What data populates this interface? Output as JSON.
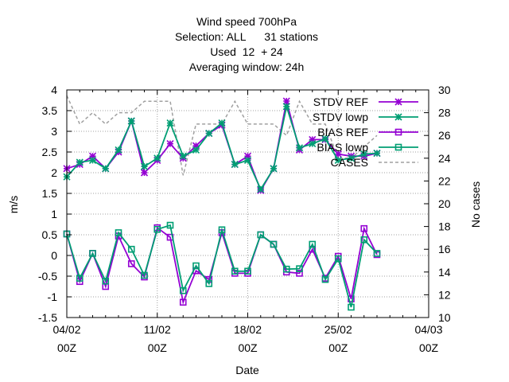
{
  "chart_data": {
    "type": "line",
    "title": [
      "Wind speed 700hPa",
      "Selection: ALL      31 stations",
      "Used  12  + 24",
      "Averaging window: 24h"
    ],
    "xlabel": "Date",
    "ylabel": "m/s",
    "y2label": "No cases",
    "x_ticks": [
      {
        "x": 0,
        "line1": "04/02",
        "line2": "00Z"
      },
      {
        "x": 7,
        "line1": "11/02",
        "line2": "00Z"
      },
      {
        "x": 14,
        "line1": "18/02",
        "line2": "00Z"
      },
      {
        "x": 21,
        "line1": "25/02",
        "line2": "00Z"
      },
      {
        "x": 28,
        "line1": "04/03",
        "line2": "00Z"
      }
    ],
    "xlim": [
      0,
      28
    ],
    "ylim": [
      -1.5,
      4
    ],
    "y_ticks": [
      "-1.5",
      "-1",
      "-0.5",
      "0",
      "0.5",
      "1",
      "1.5",
      "2",
      "2.5",
      "3",
      "3.5",
      "4"
    ],
    "y2lim": [
      10,
      30
    ],
    "y2_ticks": [
      "10",
      "12",
      "14",
      "16",
      "18",
      "20",
      "22",
      "24",
      "26",
      "28",
      "30"
    ],
    "grid": true,
    "legend_placement": "top-right",
    "x": [
      0,
      1,
      2,
      3,
      4,
      5,
      6,
      7,
      8,
      9,
      10,
      11,
      12,
      13,
      14,
      15,
      16,
      17,
      18,
      19,
      20,
      21,
      22,
      23,
      24
    ],
    "series": [
      {
        "name": "STDV REF",
        "axis": "y",
        "color": "#9400d3",
        "marker": "star",
        "values": [
          2.1,
          2.2,
          2.4,
          2.1,
          2.5,
          3.25,
          2.0,
          2.3,
          2.7,
          2.35,
          2.65,
          2.95,
          3.15,
          2.2,
          2.4,
          1.57,
          2.1,
          3.73,
          2.55,
          2.8,
          2.8,
          2.45,
          2.4,
          2.4,
          2.47
        ]
      },
      {
        "name": "STDV lowp",
        "axis": "y",
        "color": "#009e73",
        "marker": "star",
        "values": [
          1.9,
          2.25,
          2.3,
          2.1,
          2.55,
          3.25,
          2.15,
          2.35,
          3.2,
          2.4,
          2.55,
          2.95,
          3.2,
          2.2,
          2.3,
          1.6,
          2.1,
          3.6,
          2.6,
          2.7,
          2.82,
          2.3,
          2.35,
          2.45,
          2.47
        ]
      },
      {
        "name": "BIAS REF",
        "axis": "y",
        "color": "#9400d3",
        "marker": "square",
        "values": [
          0.52,
          -0.63,
          0.05,
          -0.75,
          0.47,
          -0.2,
          -0.52,
          0.67,
          0.44,
          -1.13,
          -0.37,
          -0.58,
          0.55,
          -0.43,
          -0.43,
          0.5,
          0.27,
          -0.4,
          -0.43,
          0.15,
          -0.55,
          -0.02,
          -1.05,
          0.65,
          0.02
        ]
      },
      {
        "name": "BIAS lowp",
        "axis": "y",
        "color": "#009e73",
        "marker": "square",
        "values": [
          0.52,
          -0.55,
          0.05,
          -0.62,
          0.55,
          0.15,
          -0.48,
          0.63,
          0.73,
          -0.85,
          -0.25,
          -0.68,
          0.62,
          -0.38,
          -0.38,
          0.5,
          0.27,
          -0.33,
          -0.32,
          0.27,
          -0.58,
          -0.08,
          -1.25,
          0.38,
          0.05
        ]
      },
      {
        "name": "CASES",
        "axis": "y2",
        "color": "#a0a0a0",
        "marker": "none",
        "x": [
          0,
          1,
          2,
          3,
          4,
          5,
          6,
          7,
          8,
          9,
          10,
          11,
          12,
          13,
          14,
          15,
          16,
          17,
          18,
          19,
          20,
          21,
          22,
          23,
          24
        ],
        "values": [
          29.5,
          27,
          28,
          27,
          28,
          28,
          29,
          29,
          29,
          22.5,
          27,
          27,
          27,
          29,
          27,
          27,
          27,
          26,
          29,
          27,
          27,
          24,
          24,
          25,
          26
        ]
      }
    ]
  }
}
